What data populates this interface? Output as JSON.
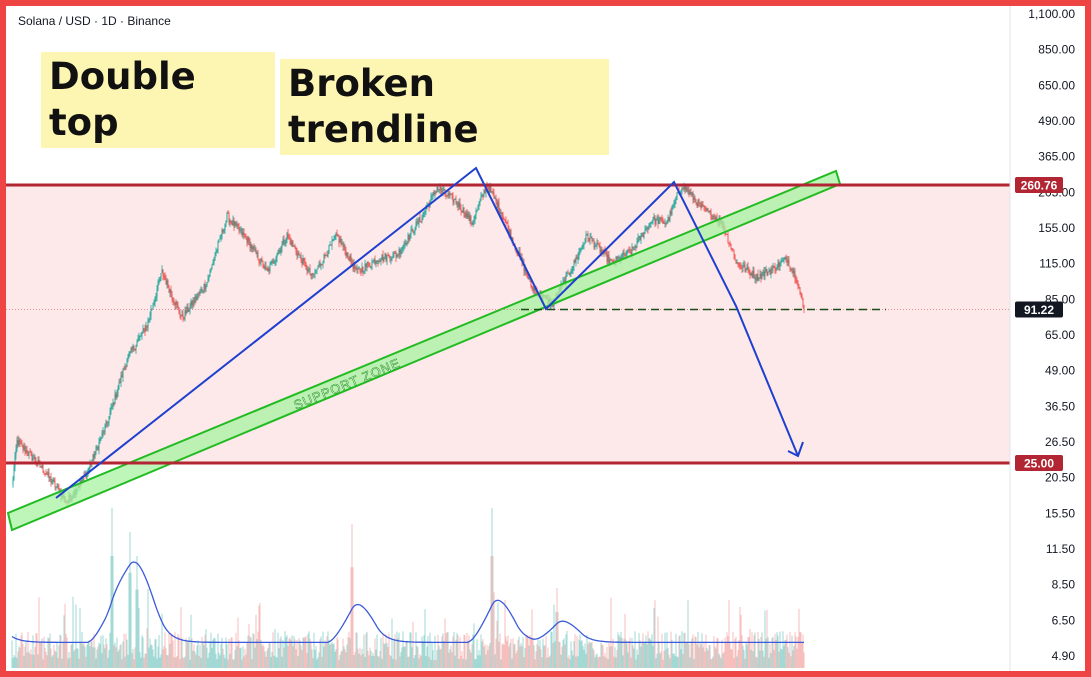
{
  "header": {
    "symbol": "Solana / USD · 1D · Binance"
  },
  "annotations": {
    "double_top": "Double top",
    "broken_trendline": "Broken trendline",
    "support_zone": "SUPPORT ZONE"
  },
  "price_labels": {
    "resistance": "260.76",
    "current": "91.22",
    "support": "25.00"
  },
  "colors": {
    "frame": "#ef4444",
    "zone_fill": "#fde8ea",
    "level_line": "#b22532",
    "up_candle": "#26a69a",
    "down_candle": "#ef5350",
    "trend_line": "#1e40cf",
    "support_band": "#a7f3a0",
    "support_band_edge": "#22bb22",
    "annotation_bg": "#fdf6b2"
  },
  "chart_data": {
    "type": "candlestick",
    "y_scale": "log",
    "y_ticks": [
      "1,100.00",
      "850.00",
      "650.00",
      "490.00",
      "365.00",
      "205.00",
      "155.00",
      "115.00",
      "85.00",
      "65.00",
      "49.00",
      "36.50",
      "26.50",
      "20.50",
      "15.50",
      "11.50",
      "8.50",
      "6.50",
      "4.90"
    ],
    "levels": [
      260.76,
      91.22,
      25.0
    ],
    "close_path": [
      {
        "i": 0,
        "p": 20.5
      },
      {
        "i": 5,
        "p": 30
      },
      {
        "i": 30,
        "p": 24
      },
      {
        "i": 55,
        "p": 18
      },
      {
        "i": 75,
        "p": 23
      },
      {
        "i": 95,
        "p": 35
      },
      {
        "i": 115,
        "p": 60
      },
      {
        "i": 135,
        "p": 80
      },
      {
        "i": 150,
        "p": 125
      },
      {
        "i": 170,
        "p": 85
      },
      {
        "i": 195,
        "p": 115
      },
      {
        "i": 215,
        "p": 200
      },
      {
        "i": 235,
        "p": 165
      },
      {
        "i": 255,
        "p": 125
      },
      {
        "i": 275,
        "p": 170
      },
      {
        "i": 300,
        "p": 120
      },
      {
        "i": 325,
        "p": 170
      },
      {
        "i": 345,
        "p": 125
      },
      {
        "i": 365,
        "p": 140
      },
      {
        "i": 385,
        "p": 145
      },
      {
        "i": 410,
        "p": 200
      },
      {
        "i": 425,
        "p": 255
      },
      {
        "i": 445,
        "p": 225
      },
      {
        "i": 460,
        "p": 190
      },
      {
        "i": 475,
        "p": 262
      },
      {
        "i": 490,
        "p": 205
      },
      {
        "i": 505,
        "p": 150
      },
      {
        "i": 520,
        "p": 110
      },
      {
        "i": 540,
        "p": 95
      },
      {
        "i": 560,
        "p": 130
      },
      {
        "i": 575,
        "p": 170
      },
      {
        "i": 600,
        "p": 135
      },
      {
        "i": 620,
        "p": 150
      },
      {
        "i": 640,
        "p": 195
      },
      {
        "i": 655,
        "p": 190
      },
      {
        "i": 670,
        "p": 262
      },
      {
        "i": 690,
        "p": 215
      },
      {
        "i": 710,
        "p": 190
      },
      {
        "i": 725,
        "p": 135
      },
      {
        "i": 745,
        "p": 120
      },
      {
        "i": 760,
        "p": 128
      },
      {
        "i": 775,
        "p": 140
      },
      {
        "i": 785,
        "p": 118
      },
      {
        "i": 792,
        "p": 91.22
      }
    ],
    "volume_spikes": [
      {
        "i": 100,
        "v": 1.0
      },
      {
        "i": 118,
        "v": 0.85
      },
      {
        "i": 125,
        "v": 0.7
      },
      {
        "i": 340,
        "v": 0.9
      },
      {
        "i": 480,
        "v": 1.0
      },
      {
        "i": 545,
        "v": 0.5
      }
    ]
  }
}
